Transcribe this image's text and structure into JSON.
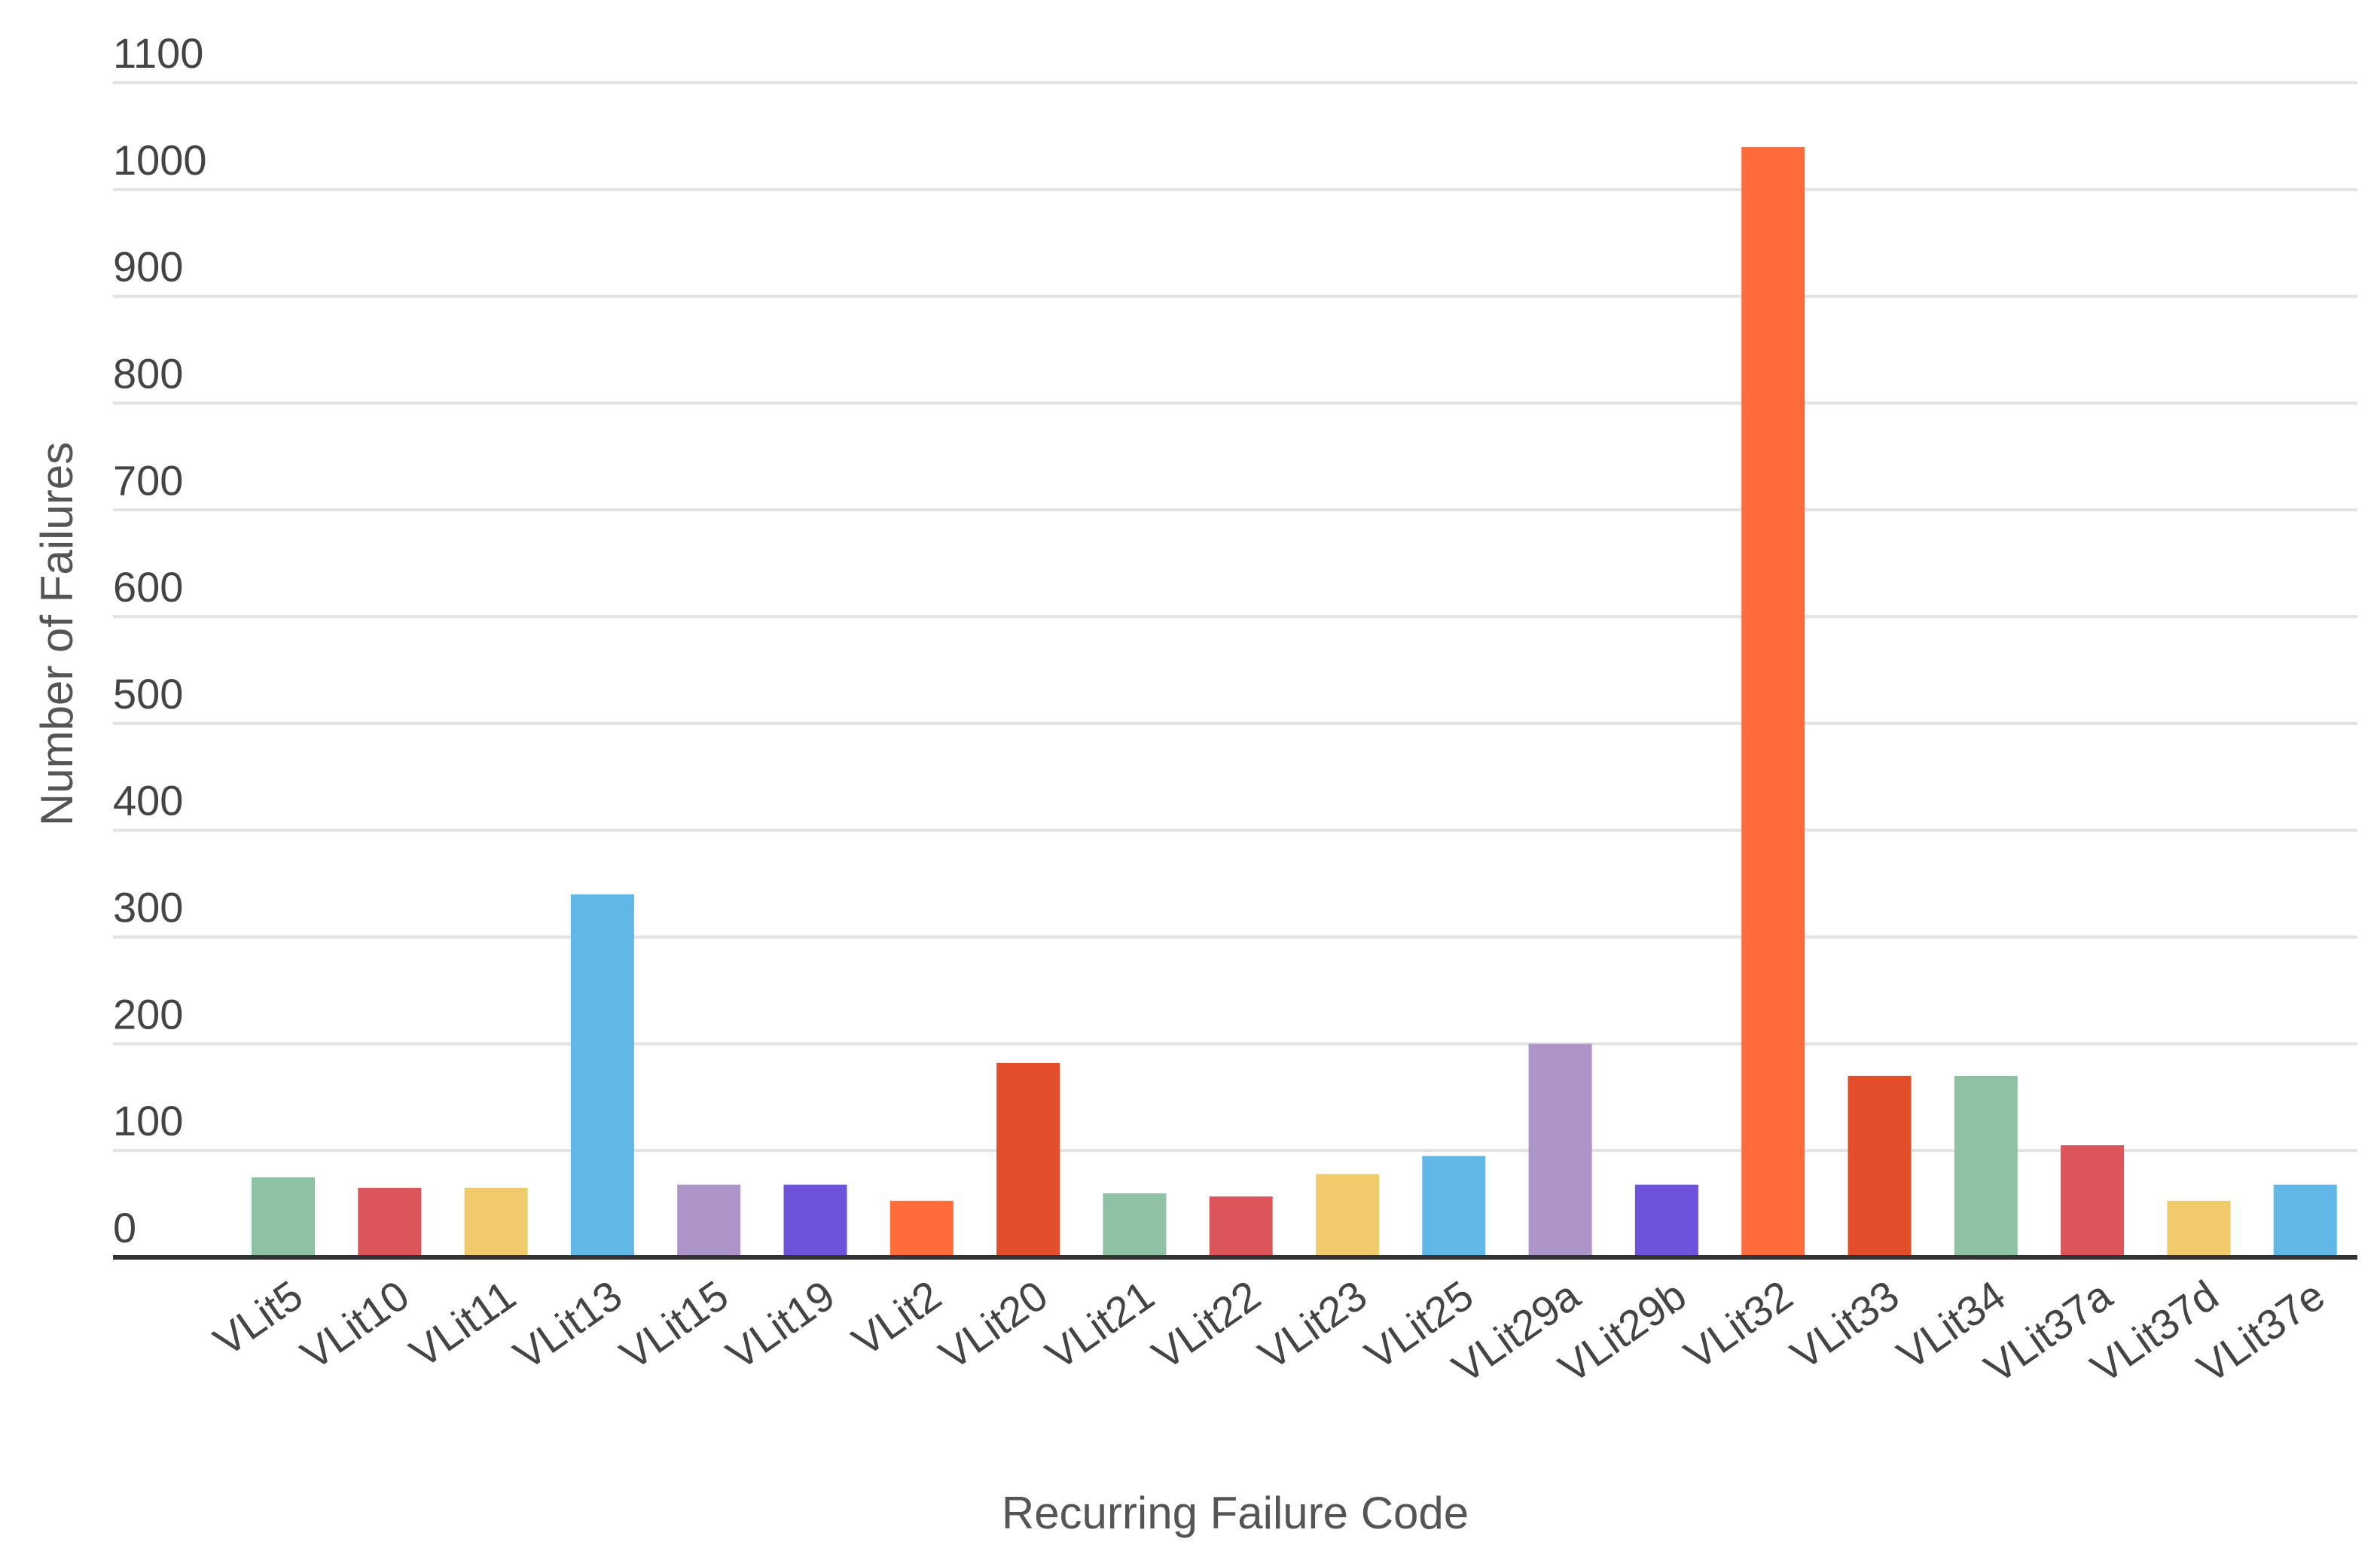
{
  "chart_data": {
    "type": "bar",
    "title": "",
    "xlabel": "Recurring Failure Code",
    "ylabel": "Number of Failures",
    "ylim": [
      0,
      1100
    ],
    "yticks": [
      0,
      100,
      200,
      300,
      400,
      500,
      600,
      700,
      800,
      900,
      1000,
      1100
    ],
    "grid": true,
    "legend": "none",
    "categories": [
      "VLit5",
      "VLit10",
      "VLit11",
      "VLit13",
      "VLit15",
      "VLit19",
      "VLit2",
      "VLit20",
      "VLit21",
      "VLit22",
      "VLit23",
      "VLit25",
      "VLit29a",
      "VLit29b",
      "VLit32",
      "VLit33",
      "VLit34",
      "VLit37a",
      "VLit37d",
      "VLit37e"
    ],
    "values": [
      75,
      65,
      65,
      340,
      68,
      68,
      53,
      182,
      60,
      57,
      78,
      95,
      200,
      68,
      1040,
      170,
      170,
      105,
      53,
      68
    ],
    "colors": [
      "#8fc1a4",
      "#db555a",
      "#f1ca6c",
      "#61b7e6",
      "#ad95c9",
      "#6d52dc",
      "#ff6b3a",
      "#e24e29",
      "#8fc1a4",
      "#db555a",
      "#f1ca6c",
      "#61b7e6",
      "#ad95c9",
      "#6d52dc",
      "#ff6b3a",
      "#e24e29",
      "#8fc1a4",
      "#db555a",
      "#f1ca6c",
      "#61b7e6"
    ]
  }
}
